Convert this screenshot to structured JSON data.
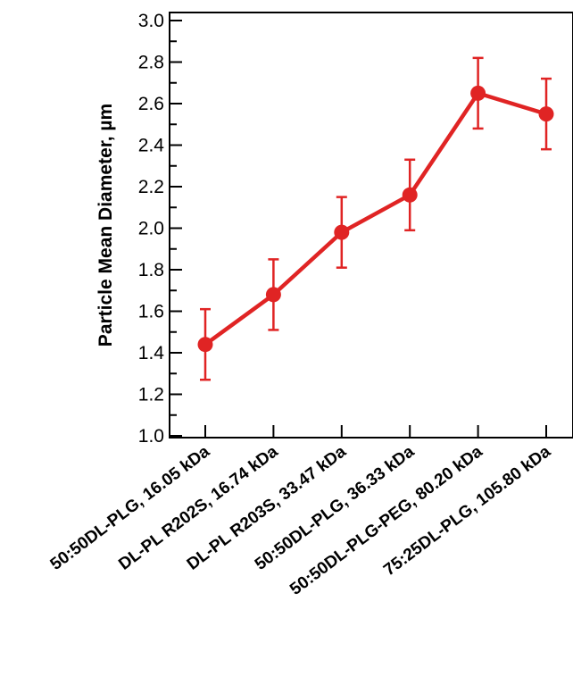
{
  "chart_data": {
    "type": "line",
    "ylabel": "Particle Mean Diameter, µm",
    "ylim": [
      1.0,
      3.0
    ],
    "yticks": [
      "1.0",
      "1.2",
      "1.4",
      "1.6",
      "1.8",
      "2.0",
      "2.2",
      "2.4",
      "2.6",
      "2.8",
      "3.0"
    ],
    "categories": [
      "50:50DL-PLG, 16.05 kDa",
      "DL-PL R202S, 16.74 kDa",
      "DL-PL R203S, 33.47 kDa",
      "50:50DL-PLG, 36.33 kDa",
      "50:50DL-PLG-PEG, 80.20 kDa",
      "75:25DL-PLG, 105.80 kDa"
    ],
    "series": [
      {
        "values": [
          1.44,
          1.68,
          1.98,
          2.16,
          2.65,
          2.55
        ],
        "error": [
          0.17,
          0.17,
          0.17,
          0.17,
          0.17,
          0.17
        ]
      }
    ],
    "grid": false,
    "line_color": "#e02424"
  }
}
